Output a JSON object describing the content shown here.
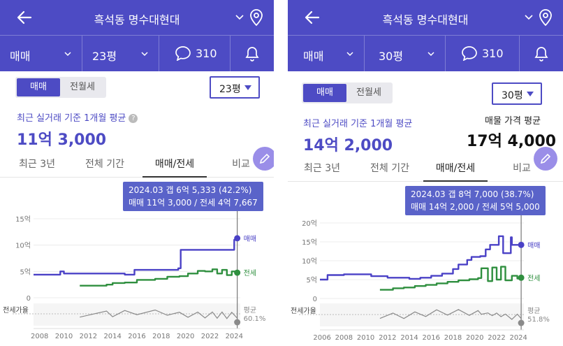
{
  "left": {
    "header": {
      "title": "흑석동 명수대현대"
    },
    "subbar": {
      "trade": "매매",
      "size": "23평",
      "comments": "310"
    },
    "segment": {
      "sale": "매매",
      "rent": "전월세"
    },
    "size_select": "23평",
    "avg_caption": "최근 실거래 기준 1개월 평균",
    "avg_value": "11억 3,000",
    "tabs": [
      "최근 3년",
      "전체 기간",
      "매매/전세",
      "비교"
    ],
    "tooltip": {
      "line1": "2024.03  갭 6억 5,333 (42.2%)",
      "line2": "매매 11억 3,000 / 전세 4억 7,667"
    },
    "chart_data": {
      "type": "line",
      "y_ticks": [
        "15억",
        "10억",
        "5억",
        "0"
      ],
      "ylim": [
        0,
        15
      ],
      "x_ticks": [
        "2008",
        "2010",
        "2012",
        "2014",
        "2016",
        "2018",
        "2020",
        "2022",
        "2024"
      ],
      "xlim": [
        2007.5,
        2024.5
      ],
      "series": [
        {
          "name": "매매",
          "color": "#4a41c6",
          "x": [
            2007.5,
            2009.5,
            2009.7,
            2010.0,
            2015.0,
            2015.8,
            2019.4,
            2019.6,
            2023.9,
            2024.0,
            2024.25
          ],
          "values": [
            4.4,
            4.4,
            5.0,
            4.6,
            4.4,
            5.3,
            5.6,
            9.1,
            9.1,
            11.0,
            11.3
          ]
        },
        {
          "name": "전세",
          "color": "#2f8f3f",
          "x": [
            2011.3,
            2013.5,
            2014.0,
            2015.0,
            2016.0,
            2017.5,
            2018.5,
            2019.5,
            2020.2,
            2021.0,
            2021.6,
            2022.2,
            2022.6,
            2023.0,
            2023.4,
            2023.8,
            2024.25
          ],
          "values": [
            2.3,
            2.5,
            2.8,
            2.9,
            3.4,
            3.6,
            4.0,
            4.1,
            4.6,
            5.1,
            5.0,
            5.4,
            4.6,
            5.3,
            4.3,
            5.0,
            4.77
          ]
        }
      ],
      "ratio_label": "전세가율",
      "ratio": {
        "name": "평균",
        "value": "60.1%",
        "color": "#8a8a8a"
      },
      "cursor_x": 2024.25
    }
  },
  "right": {
    "header": {
      "title": "흑석동 명수대현대"
    },
    "subbar": {
      "trade": "매매",
      "size": "30평",
      "comments": "310"
    },
    "segment": {
      "sale": "매매",
      "rent": "전월세"
    },
    "size_select": "30평",
    "avg_caption": "최근 실거래 기준 1개월 평균",
    "avg_value": "14억 2,000",
    "ask_caption": "매물 가격 평균",
    "ask_value": "17억 4,000",
    "tabs": [
      "최근 3년",
      "전체 기간",
      "매매/전세",
      "비교"
    ],
    "tooltip": {
      "line1": "2024.03  갭 8억 7,000 (38.7%)",
      "line2": "매매 14억 2,000 / 전세 5억 5,000"
    },
    "chart_data": {
      "type": "line",
      "y_ticks": [
        "20억",
        "15억",
        "10억",
        "5억",
        "0"
      ],
      "ylim": [
        0,
        20
      ],
      "x_ticks": [
        "2006",
        "2008",
        "2010",
        "2012",
        "2014",
        "2016",
        "2018",
        "2020",
        "2022",
        "2024"
      ],
      "xlim": [
        2005.8,
        2024.5
      ],
      "series": [
        {
          "name": "매매",
          "color": "#4a41c6",
          "x": [
            2005.8,
            2006.5,
            2008.0,
            2010.5,
            2012.0,
            2014.0,
            2015.0,
            2016.0,
            2017.0,
            2018.0,
            2018.5,
            2019.3,
            2019.7,
            2020.5,
            2021.0,
            2021.4,
            2022.2,
            2022.5,
            2022.6,
            2023.3,
            2023.4,
            2024.25
          ],
          "values": [
            5.0,
            6.2,
            6.4,
            5.9,
            5.5,
            5.2,
            5.5,
            6.0,
            6.6,
            7.8,
            9.0,
            10.2,
            11.0,
            11.2,
            13.0,
            14.2,
            16.5,
            16.5,
            12.0,
            16.2,
            14.2,
            14.2
          ]
        },
        {
          "name": "전세",
          "color": "#2f8f3f",
          "x": [
            2011.3,
            2012.5,
            2013.5,
            2014.5,
            2015.5,
            2016.5,
            2017.5,
            2018.5,
            2019.5,
            2020.3,
            2020.6,
            2021.2,
            2021.6,
            2022.0,
            2022.4,
            2022.8,
            2023.4,
            2023.9,
            2024.25
          ],
          "values": [
            2.3,
            2.7,
            2.9,
            3.3,
            3.6,
            4.0,
            4.4,
            4.8,
            5.1,
            5.4,
            8.0,
            4.6,
            8.2,
            5.0,
            8.4,
            4.8,
            6.0,
            5.3,
            5.5
          ]
        }
      ],
      "ratio_label": "전세가율",
      "ratio": {
        "name": "평균",
        "value": "51.8%",
        "color": "#8a8a8a"
      },
      "cursor_x": 2024.25
    }
  }
}
